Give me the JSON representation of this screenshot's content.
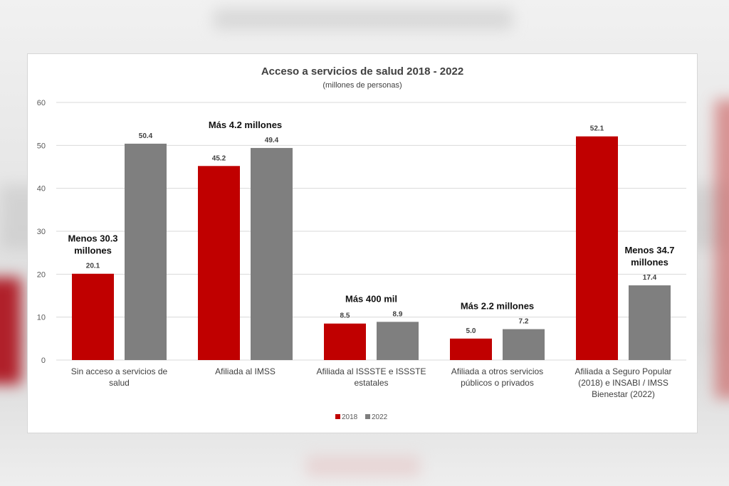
{
  "chart_data": {
    "type": "bar",
    "title": "Acceso a servicios de salud 2018 - 2022",
    "subtitle": "(millones de personas)",
    "xlabel": "",
    "ylabel": "",
    "ylim": [
      0,
      60
    ],
    "yticks": [
      0,
      10,
      20,
      30,
      40,
      50,
      60
    ],
    "grid": true,
    "legend_position": "bottom",
    "categories": [
      [
        "Sin acceso a servicios de",
        "salud"
      ],
      [
        "Afiliada al IMSS"
      ],
      [
        "Afiliada al ISSSTE e ISSSTE",
        "estatales"
      ],
      [
        "Afiliada a otros servicios",
        "públicos o privados"
      ],
      [
        "Afiliada a Seguro Popular",
        "(2018) e INSABI / IMSS",
        "Bienestar (2022)"
      ]
    ],
    "series": [
      {
        "name": "2018",
        "color": "#c00000",
        "values": [
          20.1,
          45.2,
          8.5,
          5.0,
          52.1
        ],
        "labels": [
          "20.1",
          "45.2",
          "8.5",
          "5.0",
          "52.1"
        ]
      },
      {
        "name": "2022",
        "color": "#7f7f7f",
        "values": [
          50.4,
          49.4,
          8.9,
          7.2,
          17.4
        ],
        "labels": [
          "50.4",
          "49.4",
          "8.9",
          "7.2",
          "17.4"
        ]
      }
    ],
    "annotations": [
      {
        "lines": [
          "Menos 30.3",
          "millones"
        ],
        "category": 0,
        "anchor": "2018"
      },
      {
        "lines": [
          "Más 4.2 millones"
        ],
        "category": 1,
        "anchor": "center"
      },
      {
        "lines": [
          "Más 400 mil"
        ],
        "category": 2,
        "anchor": "center"
      },
      {
        "lines": [
          "Más 2.2 millones"
        ],
        "category": 3,
        "anchor": "center"
      },
      {
        "lines": [
          "Menos 34.7",
          "millones"
        ],
        "category": 4,
        "anchor": "2022"
      }
    ]
  }
}
